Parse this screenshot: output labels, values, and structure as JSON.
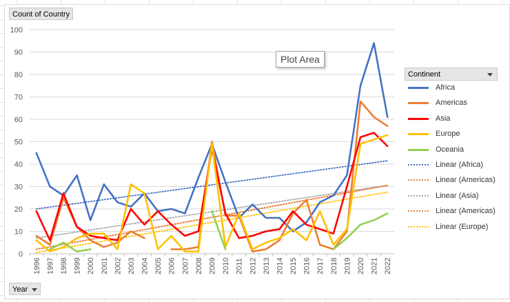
{
  "pivot": {
    "value_field": "Count of Country",
    "axis_field": "Year",
    "legend_field": "Continent",
    "tooltip": "Plot Area"
  },
  "icons": {
    "dropdown": "chevron-down-icon"
  },
  "legend": {
    "items": [
      {
        "label": "Africa",
        "color": "#4472c4",
        "style": "solid"
      },
      {
        "label": "Americas",
        "color": "#ed7d31",
        "style": "solid"
      },
      {
        "label": "Asia",
        "color": "#ff0000",
        "style": "solid"
      },
      {
        "label": "Europe",
        "color": "#ffc000",
        "style": "solid"
      },
      {
        "label": "Oceania",
        "color": "#92d050",
        "style": "solid"
      },
      {
        "label": "Linear (Africa)",
        "color": "#4472c4",
        "style": "dotted"
      },
      {
        "label": "Linear (Americas)",
        "color": "#ed7d31",
        "style": "dotted"
      },
      {
        "label": "Linear (Asia)",
        "color": "#a5a5a5",
        "style": "dotted"
      },
      {
        "label": "Linear (Americas)",
        "color": "#ed7d31",
        "style": "dotted"
      },
      {
        "label": "Linear (Europe)",
        "color": "#ffc000",
        "style": "dotted"
      }
    ]
  },
  "chart_data": {
    "type": "line",
    "title": "",
    "xlabel": "Year",
    "ylabel": "Count of Country",
    "ylim": [
      0,
      100
    ],
    "yticks": [
      0,
      10,
      20,
      30,
      40,
      50,
      60,
      70,
      80,
      90,
      100
    ],
    "grid": true,
    "legend_position": "right",
    "x": [
      "1996",
      "1997",
      "1998",
      "1999",
      "2000",
      "2001",
      "2002",
      "2003",
      "2004",
      "2005",
      "2006",
      "2007",
      "2008",
      "2009",
      "2010",
      "2011",
      "2012",
      "2013",
      "2014",
      "2015",
      "2016",
      "2017",
      "2018",
      "2019",
      "2020",
      "2021",
      "2022"
    ],
    "series": [
      {
        "name": "Africa",
        "color": "#4472c4",
        "values": [
          45,
          30,
          26,
          35,
          15,
          31,
          23,
          21,
          27,
          19,
          20,
          18,
          34,
          49,
          32,
          16,
          22,
          16,
          16,
          10,
          14,
          23,
          26,
          35,
          75,
          94,
          61
        ]
      },
      {
        "name": "Americas",
        "color": "#ed7d31",
        "values": [
          8,
          4,
          25,
          12,
          6,
          3,
          5,
          10,
          7,
          null,
          2,
          2,
          3,
          50,
          17,
          17,
          1,
          2,
          6,
          18,
          24,
          4,
          2,
          10,
          68,
          61,
          57
        ]
      },
      {
        "name": "Asia",
        "color": "#ff0000",
        "values": [
          19,
          6,
          27,
          12,
          8,
          7,
          6,
          20,
          13,
          19,
          13,
          8,
          10,
          47,
          18,
          7,
          8,
          10,
          11,
          19,
          13,
          11,
          9,
          30,
          52,
          54,
          48
        ]
      },
      {
        "name": "Europe",
        "color": "#ffc000",
        "values": [
          6,
          1,
          3,
          7,
          9,
          9,
          2,
          31,
          27,
          2,
          8,
          1,
          1,
          49,
          3,
          18,
          2,
          5,
          7,
          11,
          6,
          19,
          4,
          11,
          49,
          51,
          53
        ]
      },
      {
        "name": "Oceania",
        "color": "#92d050",
        "values": [
          null,
          2,
          5,
          1,
          2,
          null,
          null,
          null,
          null,
          null,
          null,
          null,
          null,
          19,
          2,
          null,
          null,
          null,
          null,
          null,
          null,
          null,
          2,
          7,
          13,
          15,
          18
        ]
      }
    ],
    "trendlines": [
      {
        "name": "Linear (Africa)",
        "color": "#4472c4",
        "start": 20,
        "end": 41.5
      },
      {
        "name": "Linear (Americas)",
        "color": "#ed7d31",
        "start": 2,
        "end": 30.5
      },
      {
        "name": "Linear (Asia)",
        "color": "#a5a5a5",
        "start": 7,
        "end": 30.5
      },
      {
        "name": "Linear (Americas)",
        "color": "#ed7d31",
        "start": 2,
        "end": 30.5
      },
      {
        "name": "Linear (Europe)",
        "color": "#ffc000",
        "start": 0.5,
        "end": 27.5
      }
    ]
  }
}
